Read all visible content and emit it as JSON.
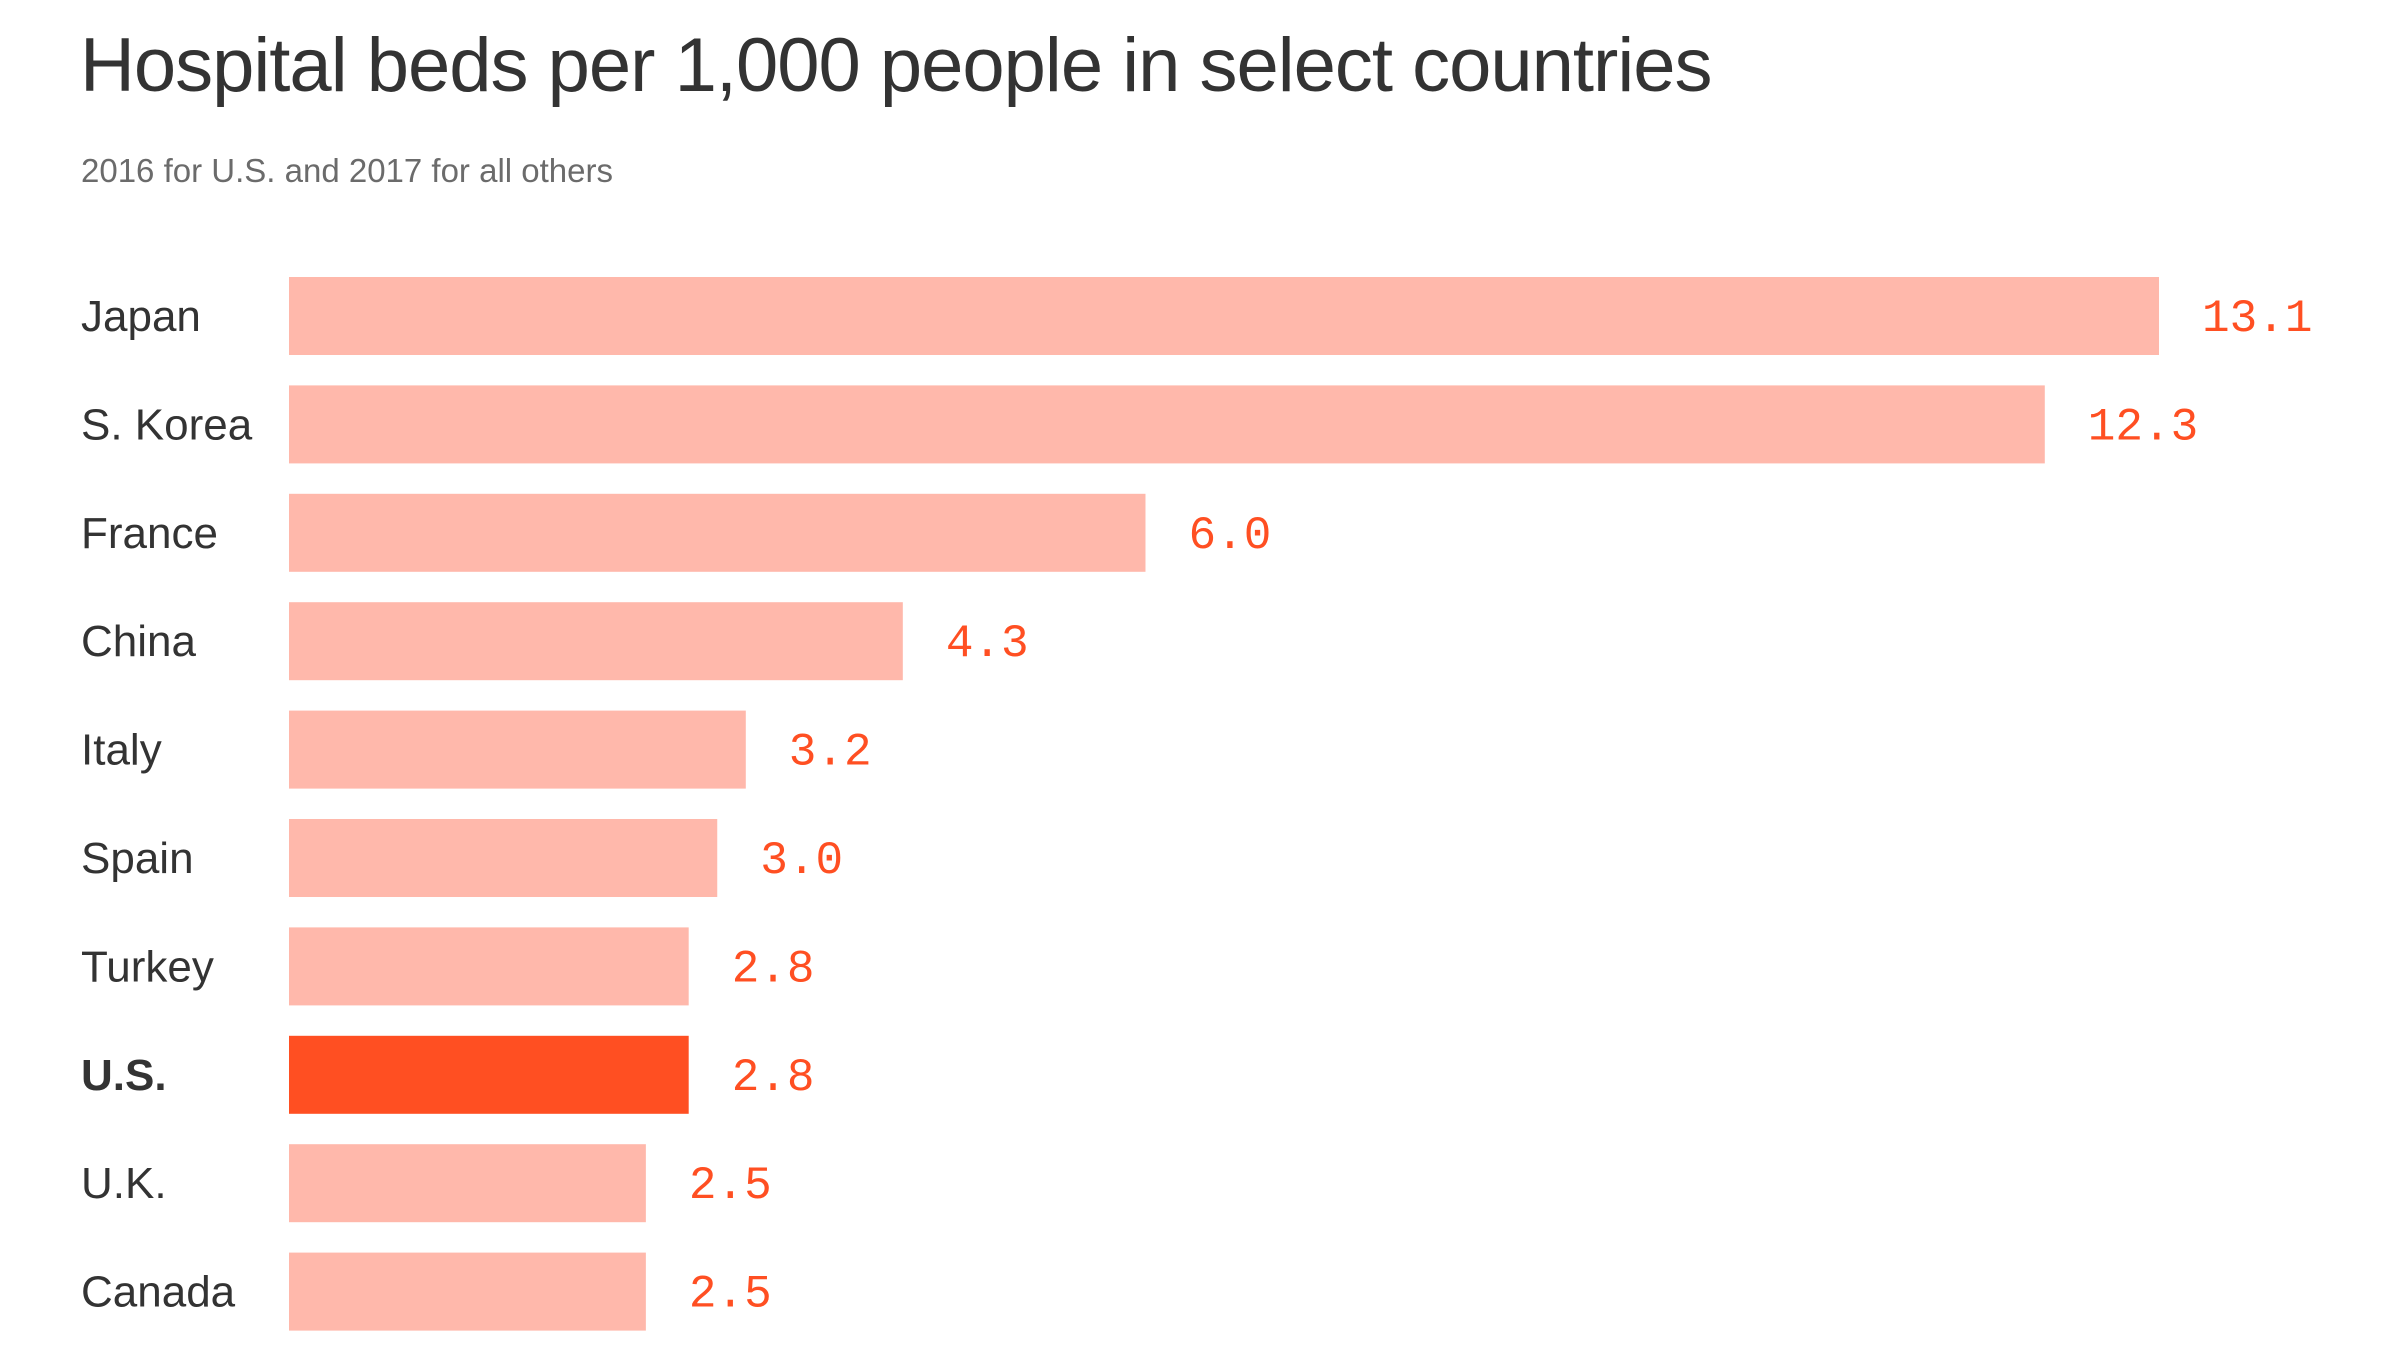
{
  "chart_data": {
    "type": "bar",
    "orientation": "horizontal",
    "title": "Hospital beds per 1,000 people in select countries",
    "subtitle": "2016 for U.S. and 2017 for all others",
    "categories": [
      "Japan",
      "S. Korea",
      "France",
      "China",
      "Italy",
      "Spain",
      "Turkey",
      "U.S.",
      "U.K.",
      "Canada"
    ],
    "values": [
      13.1,
      12.3,
      6.0,
      4.3,
      3.2,
      3.0,
      2.8,
      2.8,
      2.5,
      2.5
    ],
    "value_labels": [
      "13.1",
      "12.3",
      "6.0",
      "4.3",
      "3.2",
      "3.0",
      "2.8",
      "2.8",
      "2.5",
      "2.5"
    ],
    "highlight": "U.S.",
    "colors": {
      "default": "#ffb8ab",
      "highlight": "#ff4f22",
      "value_text": "#ff4f22"
    },
    "xlim": [
      0,
      13.1
    ],
    "grid": false,
    "axes_visible": false
  }
}
